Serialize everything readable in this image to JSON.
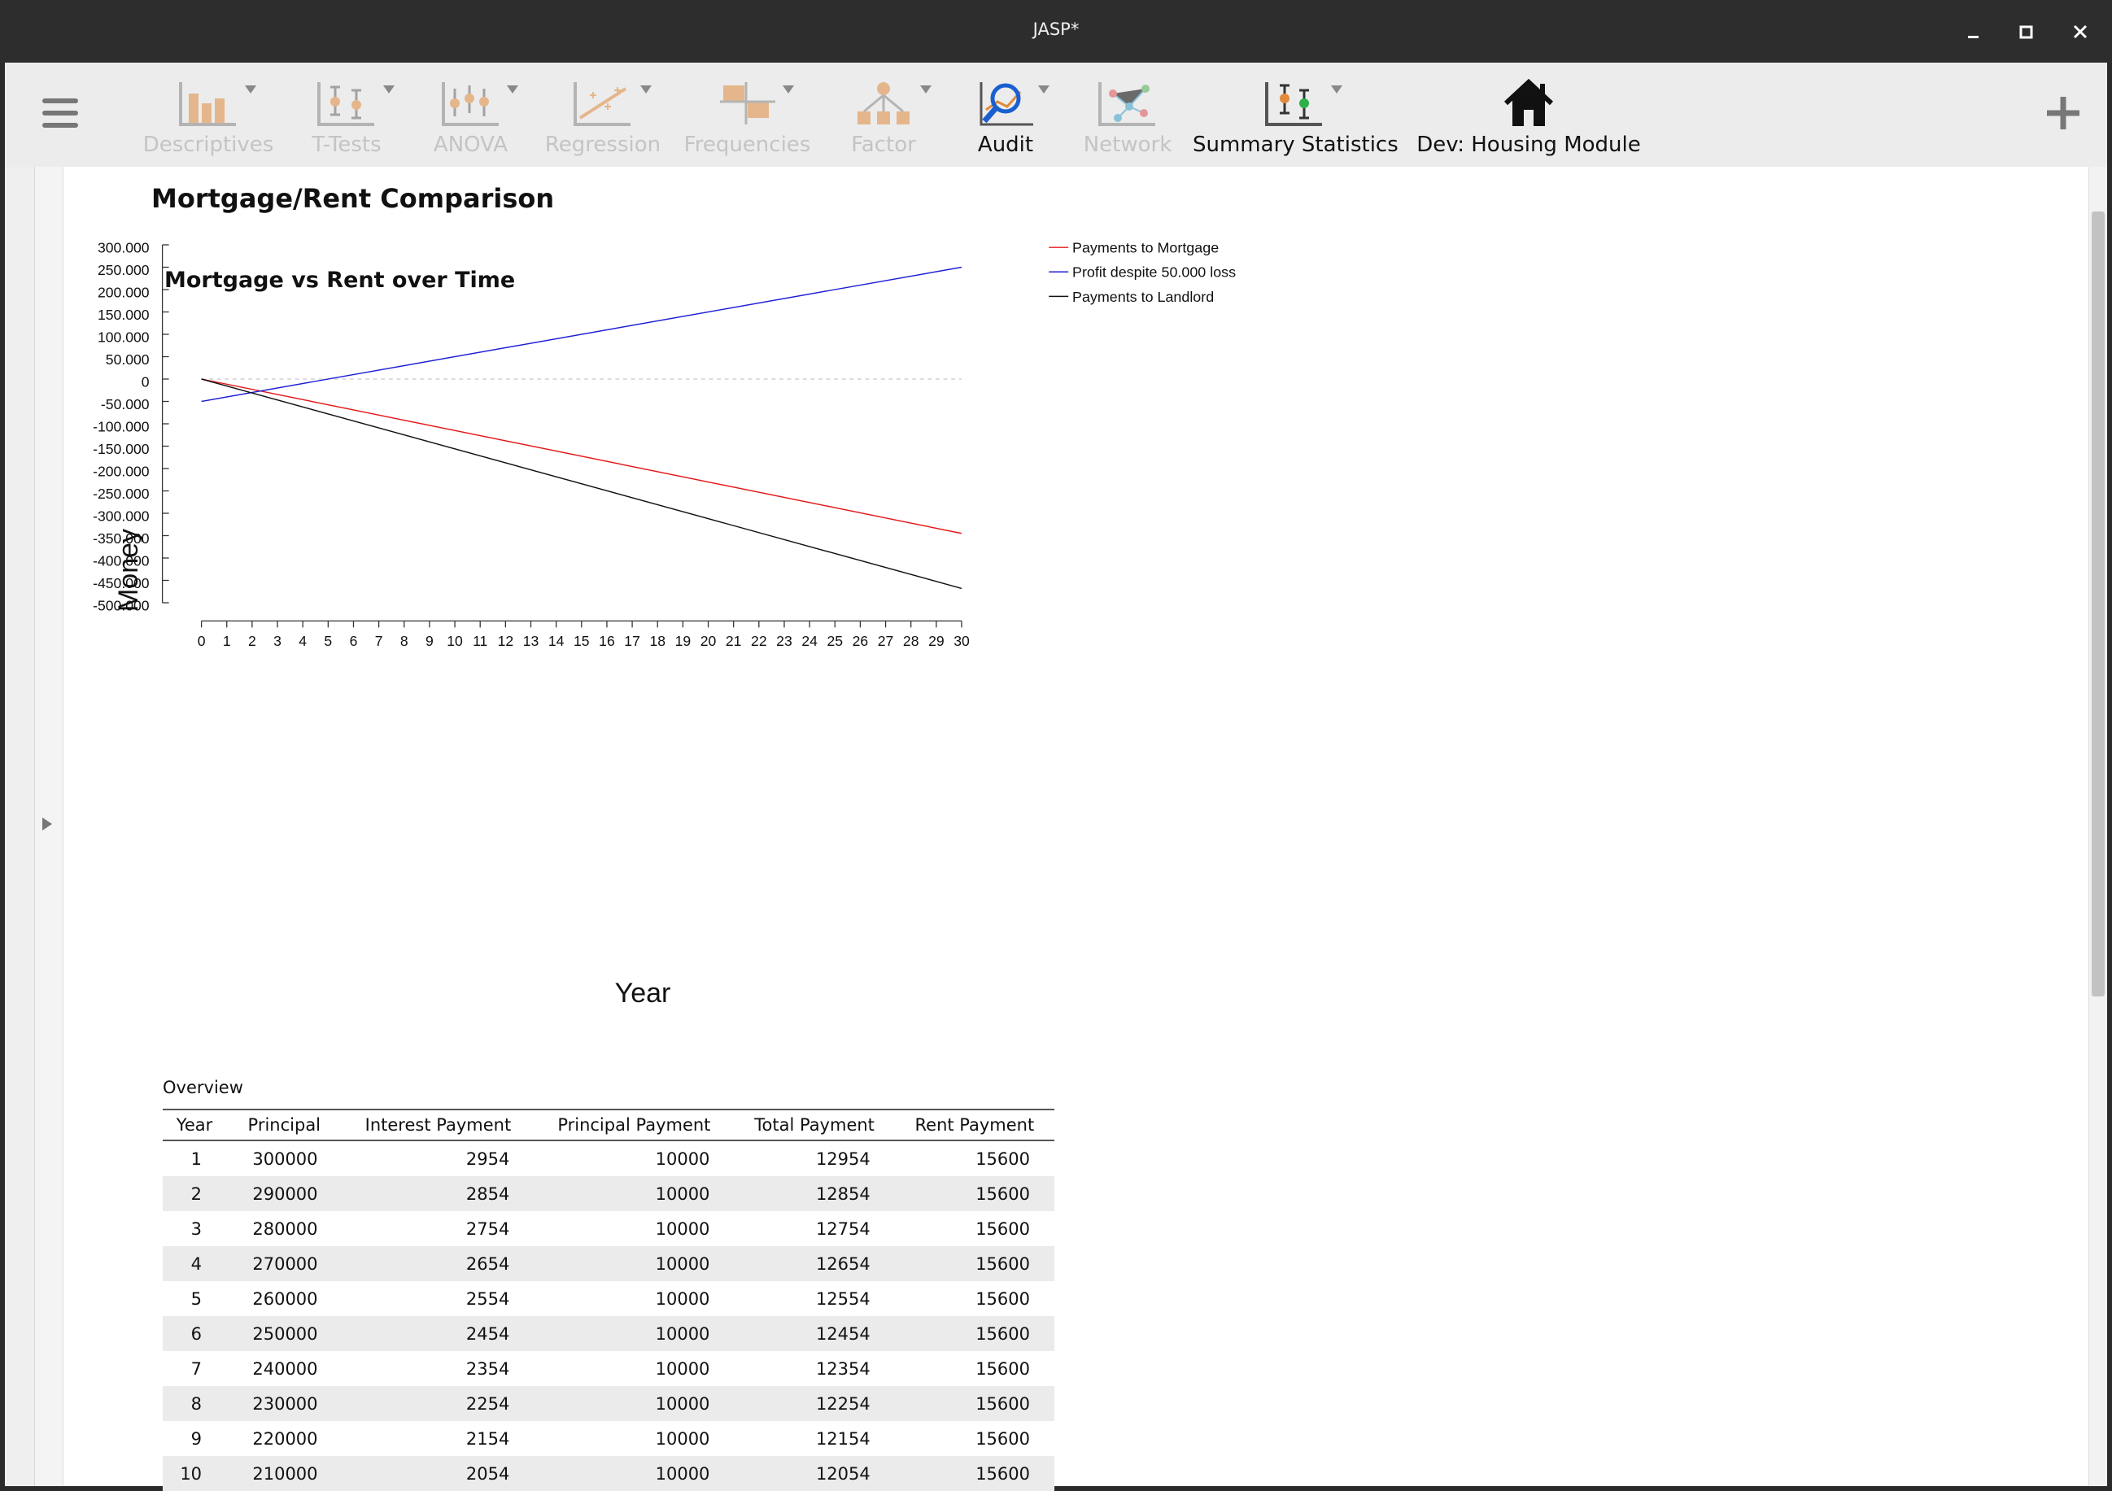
{
  "window": {
    "title": "JASP*"
  },
  "ribbon": {
    "buttons": [
      {
        "label": "Descriptives",
        "enabled": false,
        "icon": "descriptives-icon"
      },
      {
        "label": "T-Tests",
        "enabled": false,
        "icon": "t-tests-icon"
      },
      {
        "label": "ANOVA",
        "enabled": false,
        "icon": "anova-icon"
      },
      {
        "label": "Regression",
        "enabled": false,
        "icon": "regression-icon"
      },
      {
        "label": "Frequencies",
        "enabled": false,
        "icon": "frequencies-icon"
      },
      {
        "label": "Factor",
        "enabled": false,
        "icon": "factor-icon"
      },
      {
        "label": "Audit",
        "enabled": true,
        "icon": "audit-icon"
      },
      {
        "label": "Network",
        "enabled": false,
        "icon": "network-icon"
      },
      {
        "label": "Summary Statistics",
        "enabled": true,
        "icon": "summary-statistics-icon"
      },
      {
        "label": "Dev: Housing Module",
        "enabled": true,
        "icon": "house-icon"
      }
    ]
  },
  "analysis": {
    "title": "Mortgage/Rent Comparison"
  },
  "chart_data": {
    "type": "line",
    "title": "Mortgage vs Rent over Time",
    "xlabel": "Year",
    "ylabel": "Money",
    "xlim": [
      0,
      30
    ],
    "ylim": [
      -500000,
      300000
    ],
    "x_ticks": [
      "0",
      "1",
      "2",
      "3",
      "4",
      "5",
      "6",
      "7",
      "8",
      "9",
      "10",
      "11",
      "12",
      "13",
      "14",
      "15",
      "16",
      "17",
      "18",
      "19",
      "20",
      "21",
      "22",
      "23",
      "24",
      "25",
      "26",
      "27",
      "28",
      "29",
      "30"
    ],
    "y_ticks": [
      {
        "value": 300000,
        "label": "300.000"
      },
      {
        "value": 250000,
        "label": "250.000"
      },
      {
        "value": 200000,
        "label": "200.000"
      },
      {
        "value": 150000,
        "label": "150.000"
      },
      {
        "value": 100000,
        "label": "100.000"
      },
      {
        "value": 50000,
        "label": "50.000"
      },
      {
        "value": 0,
        "label": "0"
      },
      {
        "value": -50000,
        "label": "-50.000"
      },
      {
        "value": -100000,
        "label": "-100.000"
      },
      {
        "value": -150000,
        "label": "-150.000"
      },
      {
        "value": -200000,
        "label": "-200.000"
      },
      {
        "value": -250000,
        "label": "-250.000"
      },
      {
        "value": -300000,
        "label": "-300.000"
      },
      {
        "value": -350000,
        "label": "-350.000"
      },
      {
        "value": -400000,
        "label": "-400.000"
      },
      {
        "value": -450000,
        "label": "-450.000"
      },
      {
        "value": -500000,
        "label": "-500.000"
      }
    ],
    "zero_line": {
      "y": 0,
      "style": "dashed",
      "color": "#bbbbbb"
    },
    "legend_position": "top-right",
    "series": [
      {
        "name": "Payments to Mortgage",
        "color": "#e41a1c",
        "x": [
          0,
          30
        ],
        "y": [
          0,
          -345000
        ]
      },
      {
        "name": "Profit despite 50.000 loss",
        "color": "#1f1fd6",
        "x": [
          0,
          30
        ],
        "y": [
          -50000,
          250000
        ]
      },
      {
        "name": "Payments to Landlord",
        "color": "#111111",
        "x": [
          0,
          30
        ],
        "y": [
          0,
          -468000
        ]
      }
    ]
  },
  "table": {
    "caption": "Overview",
    "columns": [
      "Year",
      "Principal",
      "Interest Payment",
      "Principal Payment",
      "Total Payment",
      "Rent Payment"
    ],
    "rows": [
      [
        "1",
        "300000",
        "2954",
        "10000",
        "12954",
        "15600"
      ],
      [
        "2",
        "290000",
        "2854",
        "10000",
        "12854",
        "15600"
      ],
      [
        "3",
        "280000",
        "2754",
        "10000",
        "12754",
        "15600"
      ],
      [
        "4",
        "270000",
        "2654",
        "10000",
        "12654",
        "15600"
      ],
      [
        "5",
        "260000",
        "2554",
        "10000",
        "12554",
        "15600"
      ],
      [
        "6",
        "250000",
        "2454",
        "10000",
        "12454",
        "15600"
      ],
      [
        "7",
        "240000",
        "2354",
        "10000",
        "12354",
        "15600"
      ],
      [
        "8",
        "230000",
        "2254",
        "10000",
        "12254",
        "15600"
      ],
      [
        "9",
        "220000",
        "2154",
        "10000",
        "12154",
        "15600"
      ],
      [
        "10",
        "210000",
        "2054",
        "10000",
        "12054",
        "15600"
      ]
    ]
  }
}
